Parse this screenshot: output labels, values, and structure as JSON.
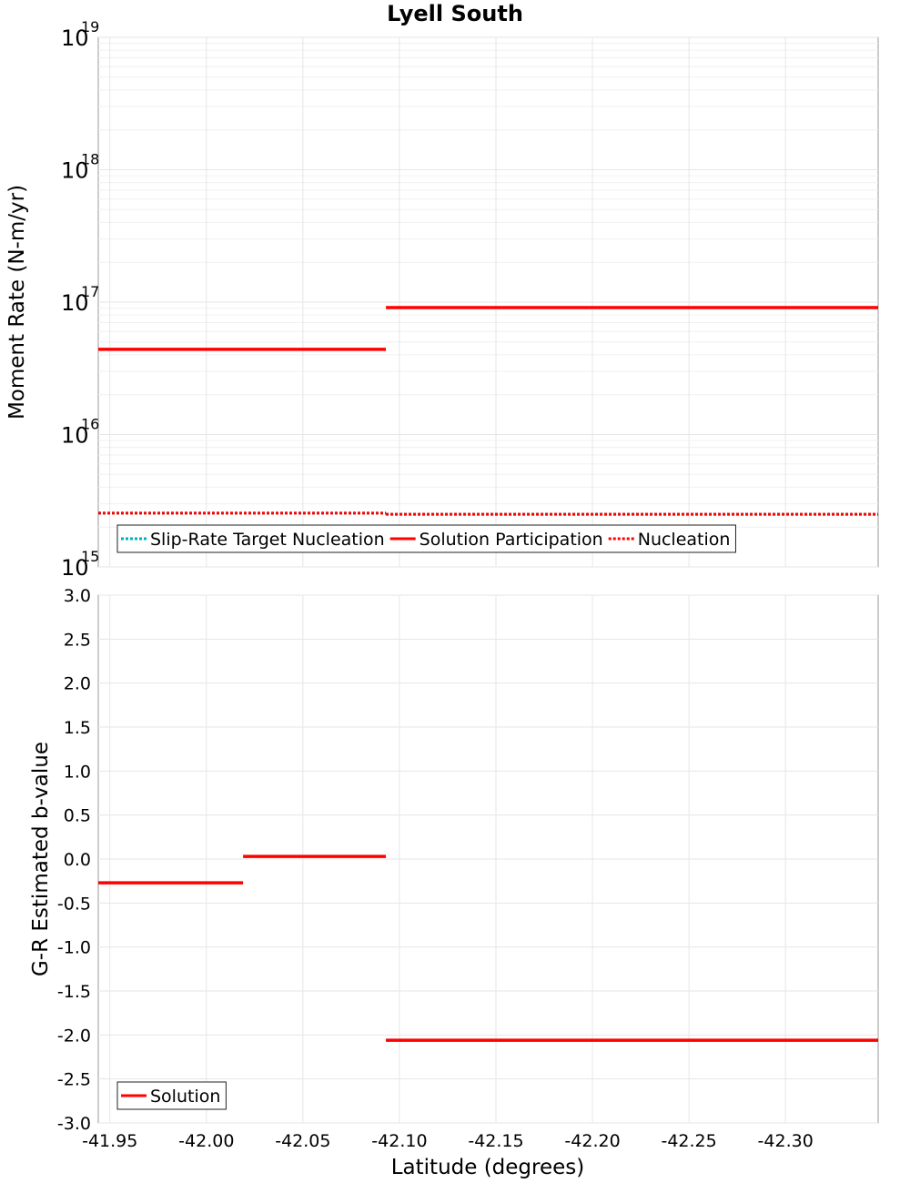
{
  "chart_data": [
    {
      "type": "line",
      "panel": "top",
      "title": "Lyell South",
      "xlabel": "Latitude (degrees)",
      "ylabel": "Moment Rate (N-m/yr)",
      "yscale": "log",
      "xlim": [
        -41.944,
        -42.348
      ],
      "ylim": [
        1000000000000000.0,
        1e+19
      ],
      "ytick_base": "10",
      "yticks": [
        "15",
        "16",
        "17",
        "18",
        "19"
      ],
      "legend_position": "bottom-left",
      "series": [
        {
          "name": "Slip-Rate Target Nucleation",
          "color": "#00b0b8",
          "style": "dotted",
          "segments": [
            {
              "x": [
                -41.944,
                -42.093
              ],
              "y": 2550000000000000.0
            },
            {
              "x": [
                -42.093,
                -42.348
              ],
              "y": 2500000000000000.0
            }
          ]
        },
        {
          "name": "Solution Participation",
          "color": "#ff0000",
          "style": "solid",
          "segments": [
            {
              "x": [
                -41.944,
                -42.093
              ],
              "y": 4.4e+16
            },
            {
              "x": [
                -42.093,
                -42.348
              ],
              "y": 9.1e+16
            }
          ]
        },
        {
          "name": "Nucleation",
          "color": "#ff0000",
          "style": "dotted",
          "segments": [
            {
              "x": [
                -41.944,
                -42.093
              ],
              "y": 2550000000000000.0
            },
            {
              "x": [
                -42.093,
                -42.348
              ],
              "y": 2500000000000000.0
            }
          ]
        }
      ]
    },
    {
      "type": "line",
      "panel": "bottom",
      "xlabel": "Latitude (degrees)",
      "ylabel": "G-R Estimated b-value",
      "xlim": [
        -41.944,
        -42.348
      ],
      "ylim": [
        -3.0,
        3.0
      ],
      "xticks": [
        -41.95,
        -42.0,
        -42.05,
        -42.1,
        -42.15,
        -42.2,
        -42.25,
        -42.3
      ],
      "xtick_labels": [
        "-41.95",
        "-42.00",
        "-42.05",
        "-42.10",
        "-42.15",
        "-42.20",
        "-42.25",
        "-42.30"
      ],
      "yticks": [
        3.0,
        2.5,
        2.0,
        1.5,
        1.0,
        0.5,
        0.0,
        -0.5,
        -1.0,
        -1.5,
        -2.0,
        -2.5,
        -3.0
      ],
      "ytick_labels": [
        "3.0",
        "2.5",
        "2.0",
        "1.5",
        "1.0",
        "0.5",
        "0.0",
        "-0.5",
        "-1.0",
        "-1.5",
        "-2.0",
        "-2.5",
        "-3.0"
      ],
      "legend_position": "bottom-left",
      "series": [
        {
          "name": "Solution",
          "color": "#ff0000",
          "style": "solid",
          "segments": [
            {
              "x": [
                -41.944,
                -42.019
              ],
              "y": -0.27
            },
            {
              "x": [
                -42.019,
                -42.093
              ],
              "y": 0.03
            },
            {
              "x": [
                -42.093,
                -42.348
              ],
              "y": -2.06
            }
          ]
        }
      ]
    }
  ]
}
